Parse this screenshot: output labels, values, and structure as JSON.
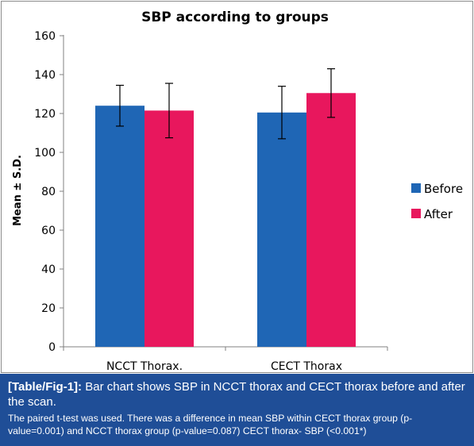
{
  "chart_data": {
    "type": "bar",
    "title": "SBP according to groups",
    "ylabel": "Mean ± S.D.",
    "xlabel": "",
    "categories": [
      "NCCT Thorax.",
      "CECT Thorax"
    ],
    "series": [
      {
        "name": "Before",
        "values": [
          124,
          120.5
        ],
        "errors": [
          10.5,
          13.5
        ],
        "color": "#1f66b5"
      },
      {
        "name": "After",
        "values": [
          121.5,
          130.5
        ],
        "errors": [
          14,
          12.5
        ],
        "color": "#e8175d"
      }
    ],
    "ylim": [
      0,
      160
    ],
    "yticks": [
      0,
      20,
      40,
      60,
      80,
      100,
      120,
      140,
      160
    ],
    "grid": false,
    "legend_position": "right"
  },
  "caption": {
    "tag": "[Table/Fig-1]:",
    "text": "Bar chart shows SBP in NCCT thorax and CECT thorax before and after the scan.",
    "note": "The paired t-test was used. There was a difference in mean SBP within CECT thorax group (p-value=0.001) and NCCT thorax group (p-value=0.087) CECT thorax- SBP (<0.001*)"
  }
}
